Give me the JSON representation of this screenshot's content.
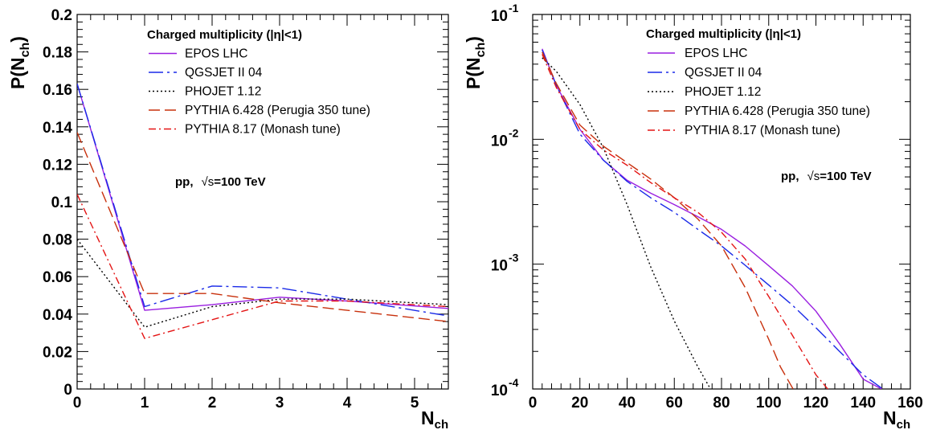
{
  "chart_data": [
    {
      "type": "line",
      "ylabel": "P(N",
      "ylabel_sub": "ch",
      "ylabel_close": ")",
      "xlabel": "N",
      "xlabel_sub": "ch",
      "xlim": [
        0,
        5.5
      ],
      "ylim": [
        0,
        0.2
      ],
      "yscale": "linear",
      "grid": false,
      "xticks": [
        "0",
        "1",
        "2",
        "3",
        "4",
        "5"
      ],
      "yticks": [
        "0",
        "0.02",
        "0.04",
        "0.06",
        "0.08",
        "0.1",
        "0.12",
        "0.14",
        "0.16",
        "0.18",
        "0.2"
      ],
      "legend_title": "Charged multiplicity (|η|<1)",
      "legend_position": "top-right",
      "annotation_prefix": "pp,",
      "annotation_sqrt": "√s",
      "annotation_value": "=100 TeV",
      "series": [
        {
          "name": "EPOS LHC",
          "color": "#9a1fe0",
          "dash": "solid",
          "x": [
            0,
            1,
            2,
            3,
            4,
            5.5
          ],
          "y": [
            0.163,
            0.042,
            0.045,
            0.049,
            0.047,
            0.043
          ]
        },
        {
          "name": "QGSJET II 04",
          "color": "#1a2ae8",
          "dash": "dash-dot-long",
          "x": [
            0,
            1,
            2,
            3,
            4,
            5.5
          ],
          "y": [
            0.163,
            0.044,
            0.055,
            0.054,
            0.048,
            0.039
          ]
        },
        {
          "name": "PHOJET 1.12",
          "color": "#000000",
          "dash": "dot",
          "x": [
            0,
            1,
            2,
            3,
            4,
            5.5
          ],
          "y": [
            0.08,
            0.033,
            0.044,
            0.048,
            0.048,
            0.045
          ]
        },
        {
          "name": "PYTHIA 6.428 (Perugia 350 tune)",
          "color": "#c8300c",
          "dash": "dash-long",
          "x": [
            0,
            1,
            2,
            3,
            4,
            5.5
          ],
          "y": [
            0.137,
            0.051,
            0.051,
            0.046,
            0.042,
            0.036
          ]
        },
        {
          "name": "PYTHIA 8.17 (Monash tune)",
          "color": "#e41414",
          "dash": "dash-dot",
          "x": [
            0,
            1,
            2,
            3,
            4,
            5.5
          ],
          "y": [
            0.104,
            0.027,
            0.037,
            0.047,
            0.047,
            0.044
          ]
        }
      ]
    },
    {
      "type": "line",
      "ylabel": "P(N",
      "ylabel_sub": "ch",
      "ylabel_close": ")",
      "xlabel": "N",
      "xlabel_sub": "ch",
      "xlim": [
        0,
        160
      ],
      "ylim": [
        0.0001,
        0.1
      ],
      "yscale": "log",
      "grid": false,
      "xticks": [
        "0",
        "20",
        "40",
        "60",
        "80",
        "100",
        "120",
        "140",
        "160"
      ],
      "yticks": [
        "10",
        "10",
        "10",
        "10"
      ],
      "ytick_exponents": [
        "-4",
        "-3",
        "-2",
        "-1"
      ],
      "legend_title": "Charged multiplicity (|η|<1)",
      "legend_position": "top-right",
      "annotation_prefix": "pp,",
      "annotation_sqrt": "√s",
      "annotation_value": "=100 TeV",
      "series": [
        {
          "name": "EPOS LHC",
          "color": "#9a1fe0",
          "dash": "solid",
          "x": [
            4,
            10,
            20,
            30,
            40,
            50,
            60,
            70,
            80,
            90,
            100,
            110,
            120,
            130,
            140,
            150
          ],
          "y": [
            0.053,
            0.027,
            0.012,
            0.0068,
            0.0047,
            0.0037,
            0.003,
            0.0024,
            0.0019,
            0.0014,
            0.00097,
            0.00067,
            0.00042,
            0.00023,
            0.00012,
            9.5e-05
          ]
        },
        {
          "name": "QGSJET II 04",
          "color": "#1a2ae8",
          "dash": "dash-dot-long",
          "x": [
            4,
            10,
            20,
            30,
            40,
            50,
            60,
            70,
            80,
            90,
            100,
            110,
            120,
            130,
            140,
            150
          ],
          "y": [
            0.052,
            0.027,
            0.011,
            0.0068,
            0.0046,
            0.0034,
            0.0026,
            0.0019,
            0.0014,
            0.00098,
            0.00068,
            0.00047,
            0.00031,
            0.0002,
            0.00013,
            9.5e-05
          ]
        },
        {
          "name": "PHOJET 1.12",
          "color": "#000000",
          "dash": "dot",
          "x": [
            4,
            10,
            20,
            30,
            40,
            50,
            60,
            70,
            76
          ],
          "y": [
            0.045,
            0.035,
            0.019,
            0.0085,
            0.003,
            0.00095,
            0.00035,
            0.00015,
            9.5e-05
          ]
        },
        {
          "name": "PYTHIA 6.428 (Perugia 350 tune)",
          "color": "#c8300c",
          "dash": "dash-long",
          "x": [
            4,
            10,
            20,
            30,
            40,
            50,
            60,
            70,
            80,
            90,
            100,
            105,
            111
          ],
          "y": [
            0.05,
            0.028,
            0.013,
            0.0088,
            0.0065,
            0.0048,
            0.0034,
            0.0023,
            0.0014,
            0.00065,
            0.00025,
            0.00015,
            9.5e-05
          ]
        },
        {
          "name": "PYTHIA 8.17 (Monash tune)",
          "color": "#e41414",
          "dash": "dash-dot",
          "x": [
            4,
            10,
            20,
            30,
            40,
            50,
            60,
            70,
            80,
            90,
            100,
            110,
            120,
            126
          ],
          "y": [
            0.048,
            0.026,
            0.012,
            0.0082,
            0.0062,
            0.0045,
            0.0034,
            0.0026,
            0.0018,
            0.0011,
            0.00055,
            0.00027,
            0.00013,
            9.5e-05
          ]
        }
      ]
    }
  ]
}
